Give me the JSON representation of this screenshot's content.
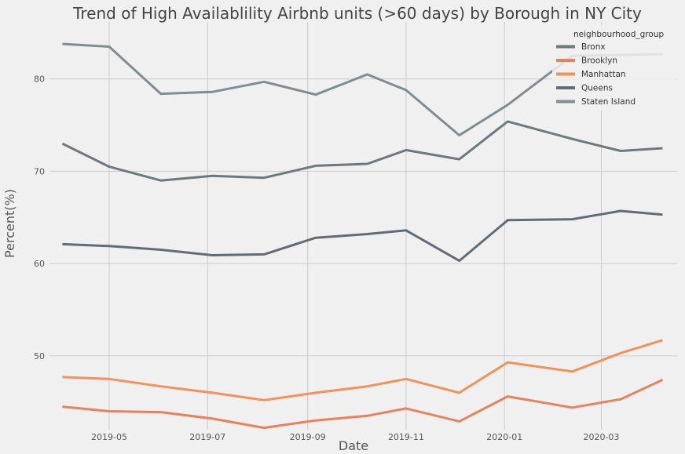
{
  "chart_data": {
    "type": "line",
    "title": "Trend of High Availablility Airbnb units (>60 days) by Borough in NY City",
    "xlabel": "Date",
    "ylabel": "Percent(%)",
    "x": [
      "2019-04-02",
      "2019-05-01",
      "2019-06-02",
      "2019-07-04",
      "2019-08-05",
      "2019-09-06",
      "2019-10-08",
      "2019-11-01",
      "2019-12-04",
      "2020-01-03",
      "2020-02-12",
      "2020-03-13",
      "2020-04-08"
    ],
    "xticks": [
      "2019-05",
      "2019-07",
      "2019-09",
      "2019-11",
      "2020-01",
      "2020-03"
    ],
    "yticks": [
      50,
      60,
      70,
      80
    ],
    "ylim": [
      42,
      85.5
    ],
    "grid": true,
    "legend": {
      "title": "neighbourhood_group",
      "placement": "top-right"
    },
    "series": [
      {
        "name": "Bronx",
        "color": "#6c7a80",
        "values": [
          73.0,
          70.5,
          69.0,
          69.5,
          69.3,
          70.6,
          70.8,
          72.3,
          71.3,
          75.4,
          73.5,
          72.2,
          72.5
        ]
      },
      {
        "name": "Brooklyn",
        "color": "#e8825a",
        "values": [
          44.5,
          44.0,
          43.9,
          43.2,
          42.2,
          43.0,
          43.5,
          44.3,
          42.9,
          45.6,
          44.4,
          45.3,
          47.4
        ]
      },
      {
        "name": "Manhattan",
        "color": "#f0925a",
        "values": [
          47.7,
          47.5,
          46.7,
          46.0,
          45.2,
          46.0,
          46.7,
          47.5,
          46.0,
          49.3,
          48.3,
          50.3,
          51.7
        ]
      },
      {
        "name": "Queens",
        "color": "#5f6e75",
        "values": [
          62.1,
          61.9,
          61.5,
          60.9,
          61.0,
          62.8,
          63.2,
          63.6,
          60.3,
          64.7,
          64.8,
          65.7,
          65.3
        ]
      },
      {
        "name": "Staten Island",
        "color": "#7e8e92",
        "values": [
          83.8,
          83.5,
          78.4,
          78.6,
          79.7,
          78.3,
          80.5,
          78.8,
          73.9,
          77.2,
          82.5,
          82.6,
          82.7
        ]
      }
    ]
  }
}
